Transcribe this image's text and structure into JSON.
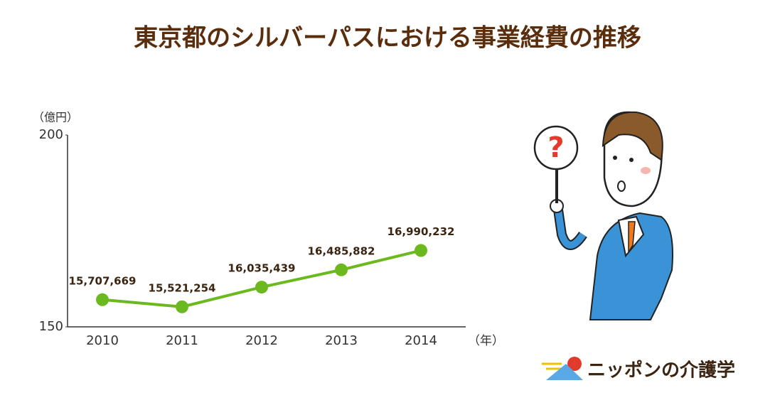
{
  "chart_data": {
    "type": "line",
    "title": "東京都のシルバーパスにおける事業経費の推移",
    "y_label": "（億円）",
    "x_label": "（年）",
    "categories": [
      "2010",
      "2011",
      "2012",
      "2013",
      "2014"
    ],
    "series": [
      {
        "name": "事業経費",
        "color": "#6cb91f",
        "values": [
          157.07669,
          155.21254,
          160.35439,
          164.85882,
          169.90232
        ],
        "value_labels": [
          "15,707,669",
          "15,521,254",
          "16,035,439",
          "16,485,882",
          "16,990,232"
        ]
      }
    ],
    "ylim": [
      150,
      200
    ],
    "yticks": [
      150,
      200
    ],
    "grid": false,
    "legend": false
  },
  "illustration": {
    "sign": "?"
  },
  "logo": "ニッポンの介護学"
}
